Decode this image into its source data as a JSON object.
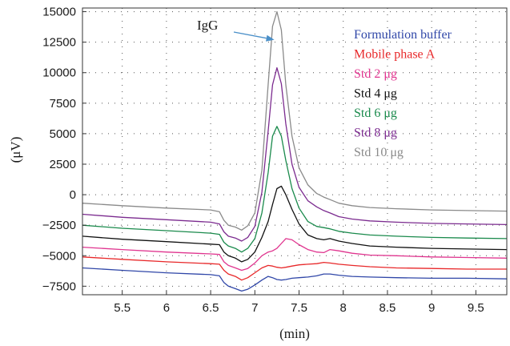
{
  "chart_data": {
    "type": "line",
    "xlabel": "(min)",
    "ylabel": "(μV)",
    "xlim": [
      5.05,
      9.85
    ],
    "ylim": [
      -8200,
      15300
    ],
    "x_ticks": [
      5.5,
      6,
      6.5,
      7,
      7.5,
      8,
      8.5,
      9,
      9.5
    ],
    "x_tick_labels": [
      "5.5",
      "6",
      "6.5",
      "7",
      "7.5",
      "8",
      "8.5",
      "9",
      "9.5"
    ],
    "y_ticks": [
      15000,
      12500,
      10000,
      7500,
      5000,
      2500,
      0,
      -2500,
      -5000,
      -7500
    ],
    "y_tick_labels": [
      "15000",
      "12500",
      "10000",
      "7500",
      "5000",
      "2500",
      "0",
      "−2500",
      "−5000",
      "−7500"
    ],
    "grid": true,
    "legend_position": "top-right",
    "annotation": {
      "text": "IgG",
      "points_to": [
        7.22,
        12700
      ],
      "color": "#4a8fc8"
    },
    "x": [
      5.05,
      5.5,
      6.0,
      6.5,
      6.6,
      6.65,
      6.7,
      6.78,
      6.85,
      6.92,
      7.0,
      7.08,
      7.15,
      7.2,
      7.25,
      7.3,
      7.35,
      7.42,
      7.5,
      7.6,
      7.7,
      7.78,
      7.85,
      7.95,
      8.1,
      8.3,
      8.6,
      9.0,
      9.4,
      9.85
    ],
    "series": [
      {
        "name": "Formulation buffer",
        "color": "#3047a8",
        "values": [
          -6000,
          -6200,
          -6400,
          -6550,
          -6650,
          -7200,
          -7500,
          -7700,
          -7900,
          -7750,
          -7400,
          -7000,
          -6700,
          -6800,
          -6950,
          -7000,
          -6950,
          -6850,
          -6800,
          -6750,
          -6650,
          -6500,
          -6500,
          -6600,
          -6700,
          -6750,
          -6800,
          -6850,
          -6850,
          -6900
        ]
      },
      {
        "name": "Mobile phase A",
        "color": "#e8282a",
        "values": [
          -5100,
          -5300,
          -5500,
          -5650,
          -5700,
          -6200,
          -6500,
          -6700,
          -7000,
          -6800,
          -6400,
          -6000,
          -5800,
          -5850,
          -5950,
          -6000,
          -5950,
          -5850,
          -5750,
          -5700,
          -5650,
          -5550,
          -5600,
          -5700,
          -5800,
          -5900,
          -6000,
          -6050,
          -6100,
          -6100
        ]
      },
      {
        "name": "Std 2 μg",
        "color": "#e0358f",
        "values": [
          -4300,
          -4500,
          -4700,
          -4850,
          -4900,
          -5500,
          -5800,
          -6000,
          -6200,
          -6050,
          -5600,
          -5000,
          -4700,
          -4600,
          -4400,
          -4000,
          -3600,
          -3700,
          -4100,
          -4500,
          -4700,
          -4750,
          -4500,
          -4600,
          -4800,
          -4950,
          -5000,
          -5100,
          -5150,
          -5200
        ]
      },
      {
        "name": "Std 4 μg",
        "color": "#111111",
        "values": [
          -3400,
          -3650,
          -3850,
          -4050,
          -4100,
          -4700,
          -5000,
          -5200,
          -5500,
          -5300,
          -4700,
          -3500,
          -2200,
          -800,
          500,
          700,
          0,
          -1200,
          -2400,
          -3300,
          -3600,
          -3700,
          -3600,
          -3800,
          -4000,
          -4200,
          -4300,
          -4400,
          -4450,
          -4500
        ]
      },
      {
        "name": "Std 6 μg",
        "color": "#1a8a4c",
        "values": [
          -2500,
          -2750,
          -2950,
          -3150,
          -3250,
          -3900,
          -4200,
          -4400,
          -4700,
          -4400,
          -3600,
          -1500,
          1800,
          4800,
          5600,
          4800,
          2800,
          500,
          -1100,
          -2200,
          -2600,
          -2700,
          -2800,
          -3000,
          -3150,
          -3300,
          -3400,
          -3500,
          -3550,
          -3600
        ]
      },
      {
        "name": "Std 8 μg",
        "color": "#7b2b8f",
        "values": [
          -1600,
          -1850,
          -2050,
          -2250,
          -2400,
          -3050,
          -3400,
          -3550,
          -3800,
          -3500,
          -2600,
          200,
          5200,
          9000,
          10400,
          9100,
          5800,
          2500,
          600,
          -500,
          -1000,
          -1300,
          -1500,
          -1800,
          -2000,
          -2150,
          -2250,
          -2350,
          -2400,
          -2450
        ]
      },
      {
        "name": "Std 10 μg",
        "color": "#8a8a8a",
        "values": [
          -700,
          -900,
          -1100,
          -1250,
          -1400,
          -2100,
          -2500,
          -2650,
          -2900,
          -2550,
          -1500,
          2000,
          9000,
          13800,
          15000,
          13500,
          9000,
          4800,
          2200,
          800,
          100,
          -200,
          -400,
          -700,
          -900,
          -1050,
          -1150,
          -1250,
          -1300,
          -1350
        ]
      }
    ]
  }
}
